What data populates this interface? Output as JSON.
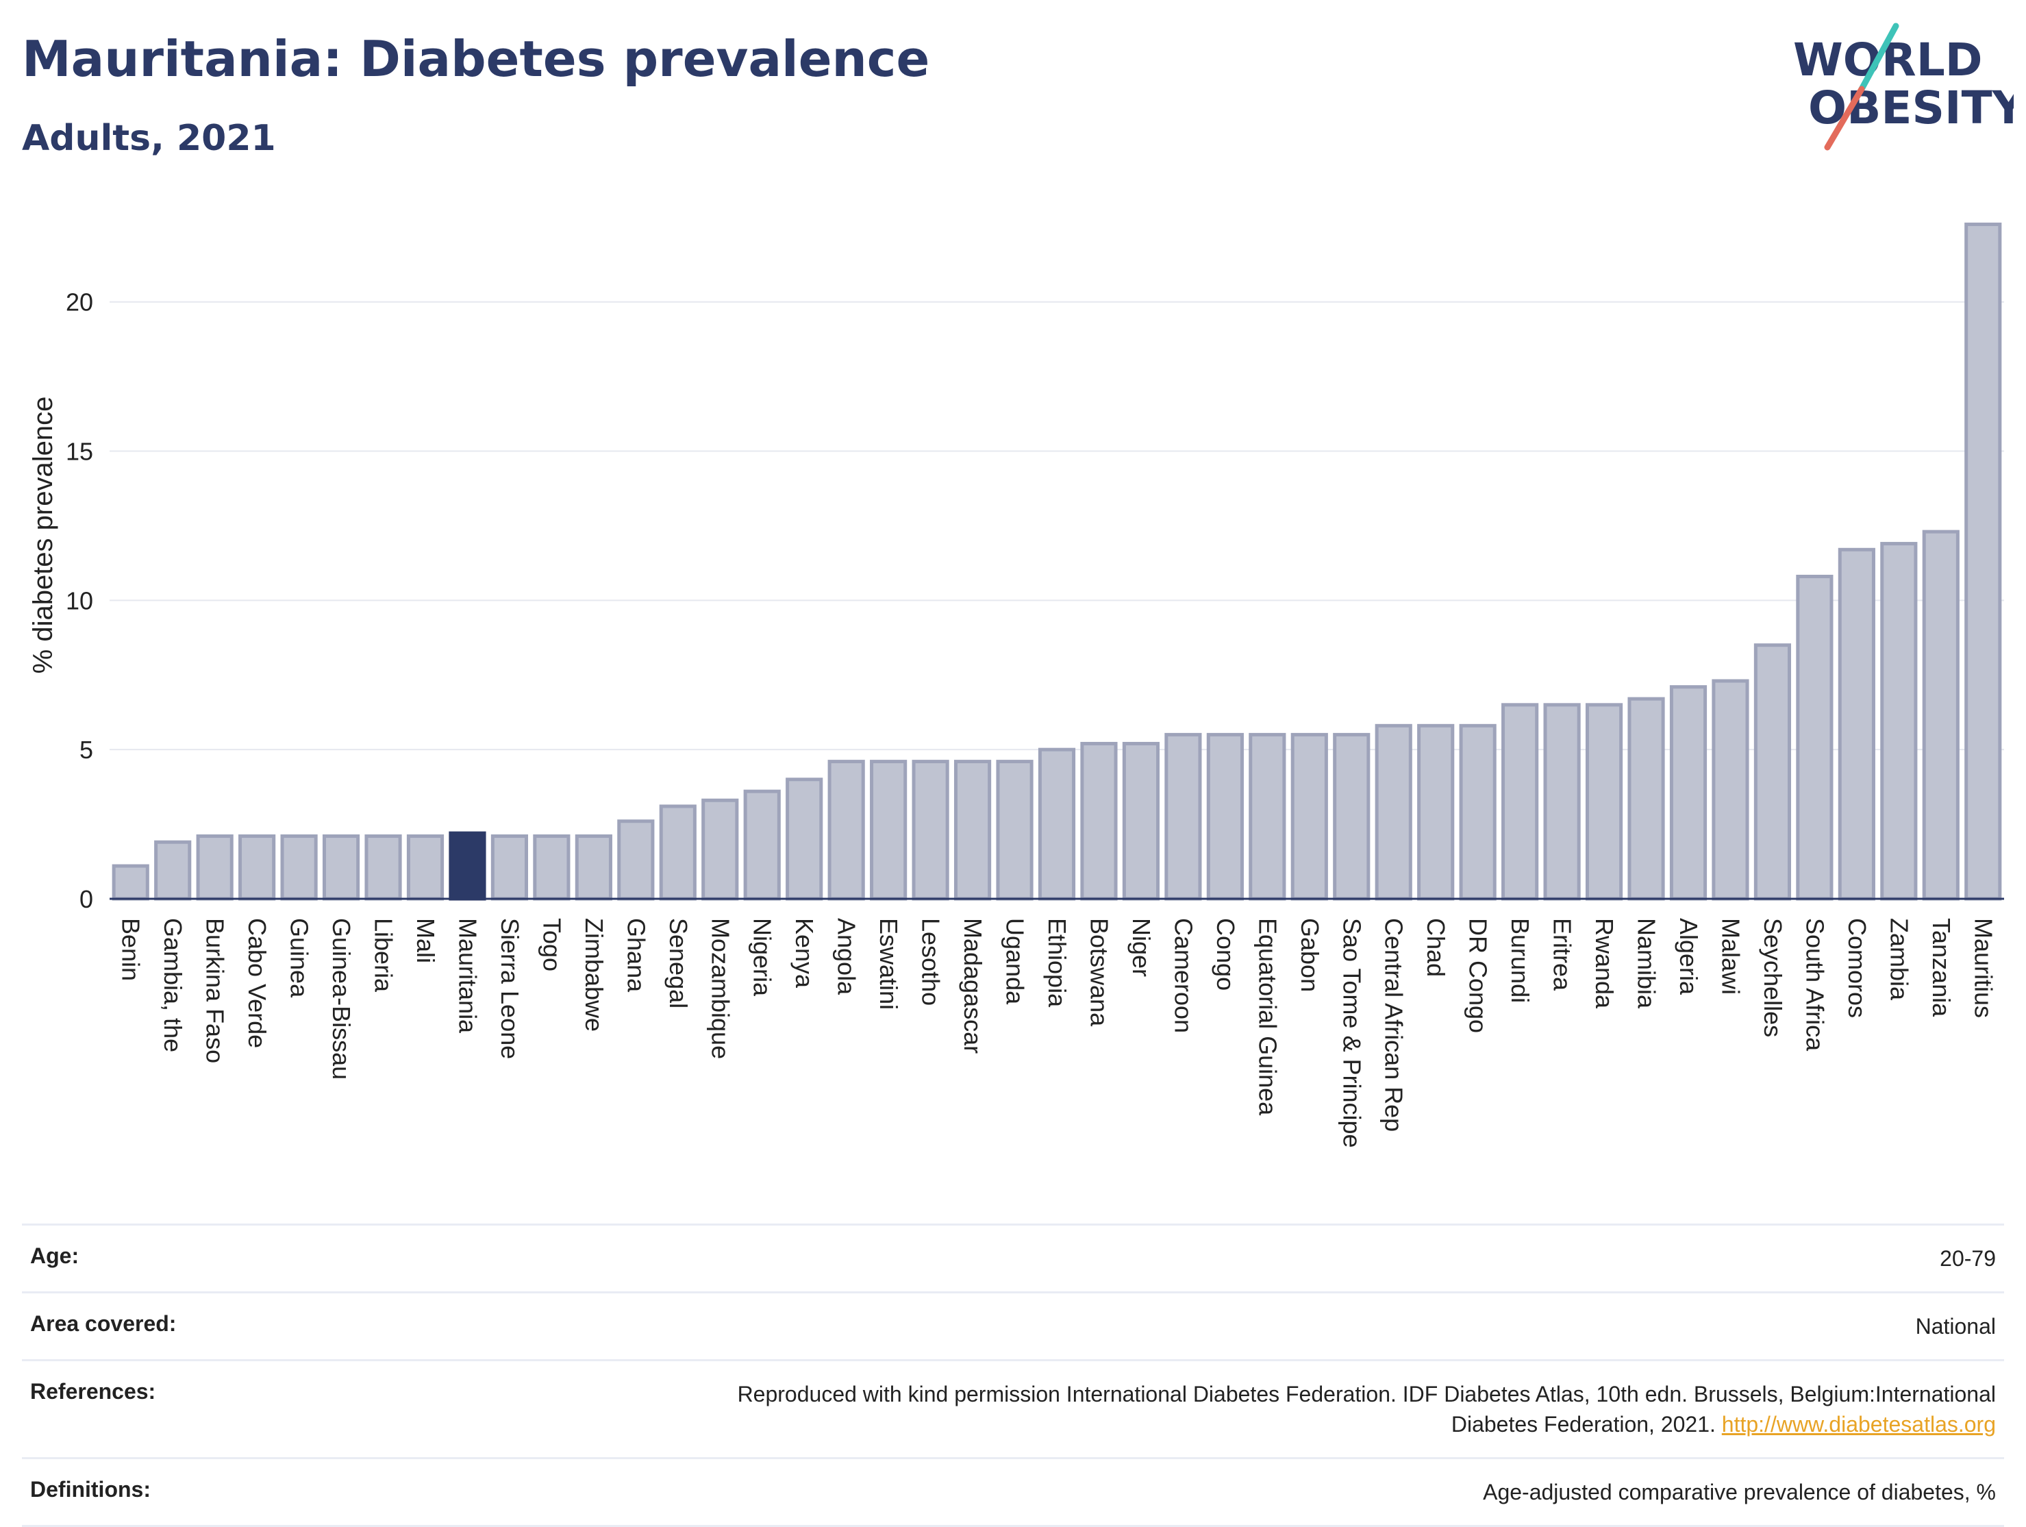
{
  "header": {
    "title": "Mauritania: Diabetes prevalence",
    "subtitle": "Adults, 2021"
  },
  "logo": {
    "line1": "WORLD",
    "line2": "OBESITY",
    "slash_colors": [
      "#3ec3b8",
      "#e36b5b"
    ],
    "text_color": "#2c3a67"
  },
  "chart_data": {
    "type": "bar",
    "ylabel": "% diabetes prevalence",
    "xlabel": "",
    "ylim": [
      0,
      23
    ],
    "yticks": [
      0,
      5,
      10,
      15,
      20
    ],
    "grid": true,
    "highlight": "Mauritania",
    "colors": {
      "bar": "#bfc3d1",
      "bar_edge": "#9ea3ba",
      "highlight": "#2c3a67",
      "grid": "#e6e8ef",
      "axis": "#2c3a67"
    },
    "categories": [
      "Benin",
      "Gambia, the",
      "Burkina Faso",
      "Cabo Verde",
      "Guinea",
      "Guinea-Bissau",
      "Liberia",
      "Mali",
      "Mauritania",
      "Sierra Leone",
      "Togo",
      "Zimbabwe",
      "Ghana",
      "Senegal",
      "Mozambique",
      "Nigeria",
      "Kenya",
      "Angola",
      "Eswatini",
      "Lesotho",
      "Madagascar",
      "Uganda",
      "Ethiopia",
      "Botswana",
      "Niger",
      "Cameroon",
      "Congo",
      "Equatorial Guinea",
      "Gabon",
      "Sao Tome & Principe",
      "Central African Rep",
      "Chad",
      "DR Congo",
      "Burundi",
      "Eritrea",
      "Rwanda",
      "Namibia",
      "Algeria",
      "Malawi",
      "Seychelles",
      "South Africa",
      "Comoros",
      "Zambia",
      "Tanzania",
      "Mauritius"
    ],
    "values": [
      1.1,
      1.9,
      2.1,
      2.1,
      2.1,
      2.1,
      2.1,
      2.1,
      2.2,
      2.1,
      2.1,
      2.1,
      2.6,
      3.1,
      3.3,
      3.6,
      4.0,
      4.6,
      4.6,
      4.6,
      4.6,
      4.6,
      5.0,
      5.2,
      5.2,
      5.5,
      5.5,
      5.5,
      5.5,
      5.5,
      5.8,
      5.8,
      5.8,
      6.5,
      6.5,
      6.5,
      6.7,
      7.1,
      7.3,
      8.5,
      10.8,
      11.7,
      11.9,
      12.3,
      22.6
    ]
  },
  "meta": {
    "age": {
      "label": "Age:",
      "value": "20-79"
    },
    "area": {
      "label": "Area covered:",
      "value": "National"
    },
    "references": {
      "label": "References:",
      "value_line1": "Reproduced with kind permission International Diabetes Federation.  IDF Diabetes Atlas, 10th edn. Brussels, Belgium:International",
      "value_line2": "Diabetes Federation, 2021.",
      "link": "http://www.diabetesatlas.org"
    },
    "definitions": {
      "label": "Definitions:",
      "value": "Age-adjusted comparative prevalence of diabetes, %"
    }
  }
}
